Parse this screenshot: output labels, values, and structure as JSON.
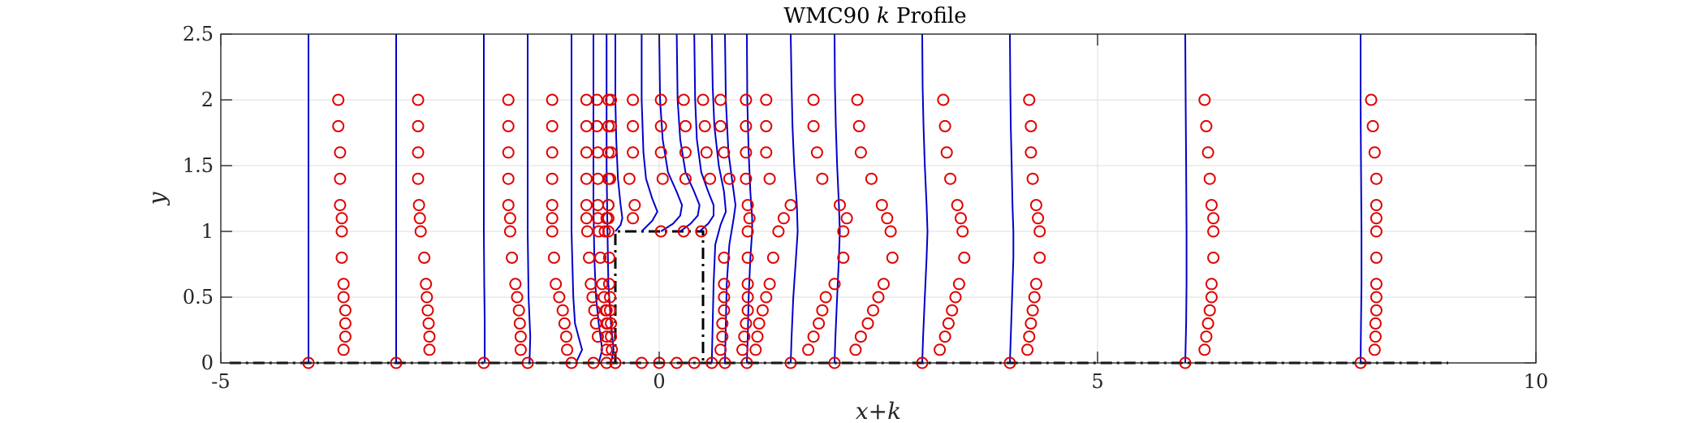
{
  "chart_data": {
    "type": "line",
    "title": "WMC90 k Profile",
    "title_parts": [
      "WMC90 ",
      "k",
      " Profile"
    ],
    "xlabel": "x+k",
    "ylabel": "y",
    "xlim": [
      -5,
      10
    ],
    "ylim": [
      0,
      2.5
    ],
    "xticks": [
      -5,
      0,
      5,
      10
    ],
    "xtick_labels": [
      "-5",
      "0",
      "5",
      "10"
    ],
    "yticks": [
      0,
      0.5,
      1,
      1.5,
      2,
      2.5
    ],
    "ytick_labels": [
      "0",
      "0.5",
      "1",
      "1.5",
      "2",
      "2.5"
    ],
    "grid": true,
    "colors": {
      "profile": "#0000cc",
      "measurement": "#e00000",
      "geometry": "#000000",
      "grid": "#dedede",
      "axis": "#262626"
    },
    "stations": [
      -4,
      -3,
      -2,
      -1.5,
      -1,
      -0.75,
      -0.6,
      -0.5,
      -0.2,
      0,
      0.2,
      0.4,
      0.6,
      0.75,
      1,
      1.5,
      2,
      3,
      4,
      6,
      8
    ],
    "profile_series": [
      {
        "x0": -4,
        "y": [
          0,
          0.5,
          1,
          1.5,
          2,
          2.5
        ],
        "dx": [
          0,
          0,
          0,
          0,
          0,
          0
        ]
      },
      {
        "x0": -3,
        "y": [
          0,
          0.5,
          1,
          1.5,
          2,
          2.5
        ],
        "dx": [
          0,
          0,
          0,
          0,
          0,
          0
        ]
      },
      {
        "x0": -2,
        "y": [
          0,
          0.3,
          0.6,
          1,
          1.5,
          2,
          2.5
        ],
        "dx": [
          0.01,
          0.01,
          0.005,
          0,
          0,
          0,
          0
        ]
      },
      {
        "x0": -1.5,
        "y": [
          0,
          0.2,
          0.5,
          1,
          1.5,
          2,
          2.5
        ],
        "dx": [
          0.02,
          0.03,
          0.01,
          0,
          0,
          0,
          0
        ]
      },
      {
        "x0": -1,
        "y": [
          0,
          0.1,
          0.2,
          0.3,
          0.5,
          1,
          1.5,
          2,
          2.5
        ],
        "dx": [
          0.05,
          0.12,
          0.08,
          0.04,
          0.02,
          0,
          0,
          0,
          0
        ]
      },
      {
        "x0": -0.75,
        "y": [
          0,
          0.1,
          0.3,
          0.5,
          0.8,
          1.2,
          2,
          2.5
        ],
        "dx": [
          0.06,
          0.1,
          0.06,
          0.03,
          0.01,
          0,
          0,
          0
        ]
      },
      {
        "x0": -0.6,
        "y": [
          0,
          0.1,
          0.3,
          0.6,
          1,
          1.5,
          2,
          2.5
        ],
        "dx": [
          0.05,
          0.08,
          0.05,
          0.02,
          0.01,
          0,
          0,
          0
        ]
      },
      {
        "x0": -0.5,
        "y": [
          1,
          1.05,
          1.1,
          1.2,
          1.4,
          1.7,
          2,
          2.5
        ],
        "dx": [
          0,
          0.06,
          0.08,
          0.06,
          0.03,
          0.01,
          0,
          0
        ]
      },
      {
        "x0": -0.2,
        "y": [
          1,
          1.08,
          1.15,
          1.25,
          1.4,
          1.6,
          2,
          2.5
        ],
        "dx": [
          0,
          0.12,
          0.18,
          0.12,
          0.05,
          0.02,
          0,
          0
        ]
      },
      {
        "x0": 0,
        "y": [
          1,
          1.06,
          1.12,
          1.2,
          1.3,
          1.45,
          1.7,
          2,
          2.5
        ],
        "dx": [
          0.02,
          0.16,
          0.24,
          0.26,
          0.2,
          0.1,
          0.04,
          0.01,
          0
        ]
      },
      {
        "x0": 0.2,
        "y": [
          1,
          1.06,
          1.12,
          1.2,
          1.3,
          1.45,
          1.7,
          2,
          2.5
        ],
        "dx": [
          0.04,
          0.16,
          0.24,
          0.26,
          0.2,
          0.1,
          0.04,
          0.01,
          0
        ]
      },
      {
        "x0": 0.4,
        "y": [
          1,
          1.06,
          1.12,
          1.2,
          1.3,
          1.45,
          1.7,
          2,
          2.5
        ],
        "dx": [
          0.06,
          0.16,
          0.22,
          0.22,
          0.16,
          0.08,
          0.03,
          0.01,
          0
        ]
      },
      {
        "x0": 0.6,
        "y": [
          0,
          0.3,
          0.6,
          0.9,
          1.05,
          1.15,
          1.3,
          1.5,
          1.8,
          2.1,
          2.5
        ],
        "dx": [
          0,
          0.01,
          0.02,
          0.04,
          0.1,
          0.16,
          0.14,
          0.08,
          0.03,
          0.01,
          0
        ]
      },
      {
        "x0": 0.75,
        "y": [
          0,
          0.3,
          0.6,
          0.9,
          1.1,
          1.2,
          1.4,
          1.6,
          2,
          2.5
        ],
        "dx": [
          0,
          0.01,
          0.02,
          0.05,
          0.1,
          0.12,
          0.08,
          0.04,
          0.01,
          0
        ]
      },
      {
        "x0": 1,
        "y": [
          0,
          0.2,
          0.5,
          0.8,
          1,
          1.1,
          1.3,
          1.6,
          2,
          2.5
        ],
        "dx": [
          0,
          0.01,
          0.02,
          0.04,
          0.06,
          0.06,
          0.04,
          0.02,
          0.005,
          0
        ]
      },
      {
        "x0": 1.5,
        "y": [
          0,
          0.2,
          0.5,
          0.8,
          1,
          1.2,
          1.5,
          1.8,
          2.1,
          2.5
        ],
        "dx": [
          0,
          0.01,
          0.03,
          0.06,
          0.08,
          0.07,
          0.04,
          0.02,
          0.01,
          0
        ]
      },
      {
        "x0": 2,
        "y": [
          0,
          0.2,
          0.5,
          0.8,
          1,
          1.2,
          1.5,
          1.8,
          2.1,
          2.5
        ],
        "dx": [
          0,
          0.01,
          0.03,
          0.05,
          0.06,
          0.05,
          0.03,
          0.015,
          0.005,
          0
        ]
      },
      {
        "x0": 3,
        "y": [
          0,
          0.2,
          0.5,
          0.8,
          1,
          1.2,
          1.5,
          1.8,
          2.1,
          2.5
        ],
        "dx": [
          0,
          0.01,
          0.03,
          0.05,
          0.06,
          0.05,
          0.03,
          0.015,
          0.005,
          0
        ]
      },
      {
        "x0": 4,
        "y": [
          0,
          0.2,
          0.5,
          0.8,
          1,
          1.2,
          1.5,
          1.8,
          2.1,
          2.5
        ],
        "dx": [
          0,
          0.01,
          0.025,
          0.04,
          0.04,
          0.03,
          0.02,
          0.01,
          0.005,
          0
        ]
      },
      {
        "x0": 6,
        "y": [
          0,
          0.3,
          0.6,
          1,
          1.5,
          2,
          2.5
        ],
        "dx": [
          0,
          0.01,
          0.015,
          0.015,
          0.01,
          0.005,
          0
        ]
      },
      {
        "x0": 8,
        "y": [
          0,
          0.3,
          0.6,
          1,
          1.5,
          2,
          2.5
        ],
        "dx": [
          0,
          0.005,
          0.01,
          0.01,
          0.005,
          0,
          0
        ]
      }
    ],
    "measurement_series": [
      {
        "x0": -4,
        "y": [
          0.1,
          0.2,
          0.3,
          0.4,
          0.5,
          0.6,
          0.8,
          1,
          1.1,
          1.2,
          1.4,
          1.6,
          1.8,
          2
        ],
        "dx": [
          0.4,
          0.42,
          0.42,
          0.42,
          0.4,
          0.4,
          0.38,
          0.38,
          0.38,
          0.36,
          0.36,
          0.36,
          0.34,
          0.34
        ]
      },
      {
        "x0": -3,
        "y": [
          0.1,
          0.2,
          0.3,
          0.4,
          0.5,
          0.6,
          0.8,
          1,
          1.1,
          1.2,
          1.4,
          1.6,
          1.8,
          2
        ],
        "dx": [
          0.38,
          0.38,
          0.37,
          0.36,
          0.35,
          0.34,
          0.32,
          0.28,
          0.27,
          0.26,
          0.25,
          0.25,
          0.25,
          0.25
        ]
      },
      {
        "x0": -2,
        "y": [
          0.1,
          0.2,
          0.3,
          0.4,
          0.5,
          0.6,
          0.8,
          1,
          1.1,
          1.2,
          1.4,
          1.6,
          1.8,
          2
        ],
        "dx": [
          0.42,
          0.42,
          0.41,
          0.4,
          0.38,
          0.36,
          0.32,
          0.3,
          0.3,
          0.28,
          0.28,
          0.28,
          0.28,
          0.28
        ]
      },
      {
        "x0": -1.5,
        "y": [
          0.1,
          0.2,
          0.3,
          0.4,
          0.5,
          0.6,
          0.8,
          1,
          1.1,
          1.2,
          1.4,
          1.6,
          1.8,
          2
        ],
        "dx": [
          0.45,
          0.44,
          0.42,
          0.4,
          0.36,
          0.32,
          0.3,
          0.28,
          0.28,
          0.28,
          0.28,
          0.28,
          0.28,
          0.28
        ]
      },
      {
        "x0": -1,
        "y": [
          0.2,
          0.3,
          0.4,
          0.5,
          0.6,
          0.8,
          1,
          1.1,
          1.2,
          1.4,
          1.6,
          1.8,
          2
        ],
        "dx": [
          0.3,
          0.28,
          0.26,
          0.24,
          0.22,
          0.2,
          0.18,
          0.17,
          0.17,
          0.17,
          0.17,
          0.17,
          0.17
        ]
      },
      {
        "x0": -0.75,
        "y": [
          0.3,
          0.4,
          0.5,
          0.6,
          0.8,
          1,
          1.1,
          1.2,
          1.4,
          1.6,
          1.8,
          2
        ],
        "dx": [
          0.16,
          0.14,
          0.12,
          0.1,
          0.08,
          0.06,
          0.05,
          0.05,
          0.05,
          0.05,
          0.04,
          0.04
        ]
      },
      {
        "x0": -0.6,
        "y": [
          0.1,
          0.2,
          0.3,
          0.4,
          0.5,
          0.6,
          0.8,
          1,
          1.1,
          1.2,
          1.4,
          1.6,
          1.8,
          2
        ],
        "dx": [
          0.06,
          0.05,
          0.05,
          0.04,
          0.04,
          0.03,
          0.03,
          0.02,
          0.02,
          0.02,
          0.02,
          0.02,
          0.02,
          0.02
        ]
      },
      {
        "x0": -0.5,
        "y": [
          0.1,
          0.2,
          0.3,
          0.4,
          1,
          1.1,
          1.2,
          1.4,
          1.6,
          1.8,
          2
        ],
        "dx": [
          -0.1,
          -0.1,
          -0.1,
          -0.1,
          -0.12,
          -0.1,
          -0.08,
          -0.06,
          -0.05,
          -0.05,
          -0.05
        ]
      },
      {
        "x0": -0.2,
        "y": [
          1.1,
          1.2,
          1.4,
          1.6,
          1.8,
          2
        ],
        "dx": [
          -0.1,
          -0.08,
          -0.14,
          -0.1,
          -0.1,
          -0.1
        ]
      },
      {
        "x0": 0,
        "y": [
          1,
          1.4,
          1.6,
          1.8,
          2
        ],
        "dx": [
          0.02,
          0.04,
          0.02,
          0.02,
          0.02
        ]
      },
      {
        "x0": 0.2,
        "y": [
          1,
          1.4,
          1.6,
          1.8,
          2
        ],
        "dx": [
          0.08,
          0.1,
          0.1,
          0.1,
          0.08
        ]
      },
      {
        "x0": 0.4,
        "y": [
          1,
          1.4,
          1.6,
          1.8,
          2
        ],
        "dx": [
          0.08,
          0.18,
          0.14,
          0.12,
          0.1
        ]
      },
      {
        "x0": 0.6,
        "y": [
          0.1,
          0.2,
          0.3,
          0.4,
          0.5,
          0.6,
          0.8,
          1.4,
          1.6,
          1.8,
          2
        ],
        "dx": [
          0.1,
          0.12,
          0.12,
          0.14,
          0.14,
          0.14,
          0.14,
          0.2,
          0.14,
          0.1,
          0.1
        ]
      },
      {
        "x0": 0.75,
        "y": [
          0.1,
          0.2,
          0.3,
          0.4,
          0.5,
          0.6,
          0.8,
          1,
          1.1,
          1.2,
          1.4,
          1.6,
          1.8,
          2
        ],
        "dx": [
          0.2,
          0.22,
          0.24,
          0.26,
          0.26,
          0.26,
          0.26,
          0.26,
          0.28,
          0.26,
          0.24,
          0.24,
          0.24,
          0.24
        ]
      },
      {
        "x0": 1,
        "y": [
          0.1,
          0.2,
          0.3,
          0.4,
          0.5,
          0.6,
          0.8,
          1,
          1.1,
          1.2,
          1.4,
          1.6,
          1.8,
          2
        ],
        "dx": [
          0.1,
          0.12,
          0.14,
          0.18,
          0.22,
          0.26,
          0.3,
          0.36,
          0.42,
          0.5,
          0.26,
          0.22,
          0.22,
          0.22
        ]
      },
      {
        "x0": 1.5,
        "y": [
          0.1,
          0.2,
          0.3,
          0.4,
          0.5,
          0.6,
          0.8,
          1,
          1.1,
          1.2,
          1.4,
          1.6,
          1.8,
          2
        ],
        "dx": [
          0.2,
          0.26,
          0.32,
          0.36,
          0.4,
          0.5,
          0.6,
          0.6,
          0.64,
          0.56,
          0.36,
          0.3,
          0.26,
          0.26
        ]
      },
      {
        "x0": 2,
        "y": [
          0.1,
          0.2,
          0.3,
          0.4,
          0.5,
          0.6,
          0.8,
          1,
          1.1,
          1.2,
          1.4,
          1.6,
          1.8,
          2
        ],
        "dx": [
          0.24,
          0.3,
          0.38,
          0.44,
          0.5,
          0.56,
          0.66,
          0.64,
          0.6,
          0.54,
          0.42,
          0.3,
          0.28,
          0.26
        ]
      },
      {
        "x0": 3,
        "y": [
          0.1,
          0.2,
          0.3,
          0.4,
          0.5,
          0.6,
          0.8,
          1,
          1.1,
          1.2,
          1.4,
          1.6,
          1.8,
          2
        ],
        "dx": [
          0.2,
          0.26,
          0.3,
          0.34,
          0.38,
          0.42,
          0.48,
          0.46,
          0.44,
          0.4,
          0.32,
          0.28,
          0.26,
          0.24
        ]
      },
      {
        "x0": 4,
        "y": [
          0.1,
          0.2,
          0.3,
          0.4,
          0.5,
          0.6,
          0.8,
          1,
          1.1,
          1.2,
          1.4,
          1.6,
          1.8,
          2
        ],
        "dx": [
          0.2,
          0.22,
          0.24,
          0.26,
          0.28,
          0.3,
          0.34,
          0.34,
          0.32,
          0.3,
          0.26,
          0.24,
          0.24,
          0.22
        ]
      },
      {
        "x0": 6,
        "y": [
          0.1,
          0.2,
          0.3,
          0.4,
          0.5,
          0.6,
          0.8,
          1,
          1.1,
          1.2,
          1.4,
          1.6,
          1.8,
          2
        ],
        "dx": [
          0.22,
          0.24,
          0.26,
          0.28,
          0.3,
          0.3,
          0.32,
          0.32,
          0.32,
          0.3,
          0.28,
          0.26,
          0.24,
          0.22
        ]
      },
      {
        "x0": 8,
        "y": [
          0.1,
          0.2,
          0.3,
          0.4,
          0.5,
          0.6,
          0.8,
          1,
          1.1,
          1.2,
          1.4,
          1.6,
          1.8,
          2
        ],
        "dx": [
          0.16,
          0.17,
          0.17,
          0.18,
          0.18,
          0.18,
          0.18,
          0.18,
          0.18,
          0.18,
          0.18,
          0.16,
          0.14,
          0.12
        ]
      }
    ],
    "geometry": {
      "floor": {
        "x": [
          -4.9,
          9
        ],
        "y": [
          0,
          0
        ]
      },
      "hill": {
        "x": [
          -0.5,
          -0.5,
          0.5,
          0.5
        ],
        "y": [
          0,
          1,
          1,
          0
        ]
      }
    }
  }
}
